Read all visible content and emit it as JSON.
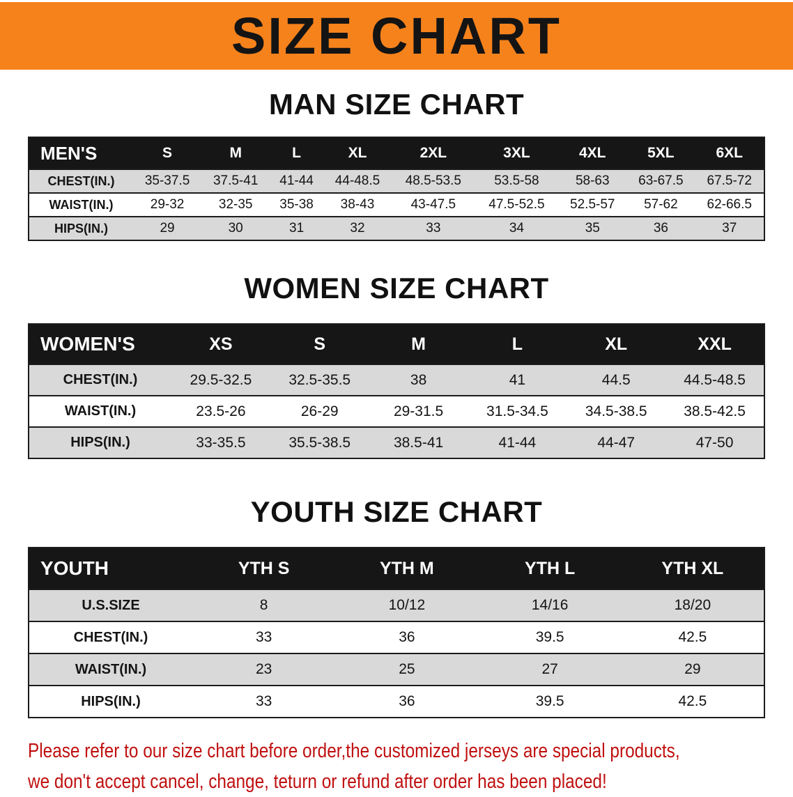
{
  "banner": {
    "title": "SIZE CHART"
  },
  "colors": {
    "banner_bg": "#F6821C",
    "banner_text": "#141414",
    "table_header_bg": "#161616",
    "table_header_text": "#FFFFFF",
    "row_stripe": "#D9D9D9",
    "border": "#1B1B1B",
    "disclaimer_text": "#C01010"
  },
  "chart_data": [
    {
      "type": "table",
      "title": "MAN SIZE CHART",
      "label_header": "MEN'S",
      "columns": [
        "S",
        "M",
        "L",
        "XL",
        "2XL",
        "3XL",
        "4XL",
        "5XL",
        "6XL"
      ],
      "rows": [
        {
          "label": "CHEST(IN.)",
          "values": [
            "35-37.5",
            "37.5-41",
            "41-44",
            "44-48.5",
            "48.5-53.5",
            "53.5-58",
            "58-63",
            "63-67.5",
            "67.5-72"
          ]
        },
        {
          "label": "WAIST(IN.)",
          "values": [
            "29-32",
            "32-35",
            "35-38",
            "38-43",
            "43-47.5",
            "47.5-52.5",
            "52.5-57",
            "57-62",
            "62-66.5"
          ]
        },
        {
          "label": "HIPS(IN.)",
          "values": [
            "29",
            "30",
            "31",
            "32",
            "33",
            "34",
            "35",
            "36",
            "37"
          ]
        }
      ]
    },
    {
      "type": "table",
      "title": "WOMEN SIZE CHART",
      "label_header": "WOMEN'S",
      "columns": [
        "XS",
        "S",
        "M",
        "L",
        "XL",
        "XXL"
      ],
      "rows": [
        {
          "label": "CHEST(IN.)",
          "values": [
            "29.5-32.5",
            "32.5-35.5",
            "38",
            "41",
            "44.5",
            "44.5-48.5"
          ]
        },
        {
          "label": "WAIST(IN.)",
          "values": [
            "23.5-26",
            "26-29",
            "29-31.5",
            "31.5-34.5",
            "34.5-38.5",
            "38.5-42.5"
          ]
        },
        {
          "label": "HIPS(IN.)",
          "values": [
            "33-35.5",
            "35.5-38.5",
            "38.5-41",
            "41-44",
            "44-47",
            "47-50"
          ]
        }
      ]
    },
    {
      "type": "table",
      "title": "YOUTH SIZE CHART",
      "label_header": "YOUTH",
      "columns": [
        "YTH S",
        "YTH M",
        "YTH L",
        "YTH XL"
      ],
      "rows": [
        {
          "label": "U.S.SIZE",
          "values": [
            "8",
            "10/12",
            "14/16",
            "18/20"
          ]
        },
        {
          "label": "CHEST(IN.)",
          "values": [
            "33",
            "36",
            "39.5",
            "42.5"
          ]
        },
        {
          "label": "WAIST(IN.)",
          "values": [
            "23",
            "25",
            "27",
            "29"
          ]
        },
        {
          "label": "HIPS(IN.)",
          "values": [
            "33",
            "36",
            "39.5",
            "42.5"
          ]
        }
      ]
    }
  ],
  "disclaimer": {
    "line1": "Please refer to our size chart before order,the customized jerseys are special products,",
    "line2": "we don't accept cancel, change, teturn or refund after order has been placed!"
  }
}
